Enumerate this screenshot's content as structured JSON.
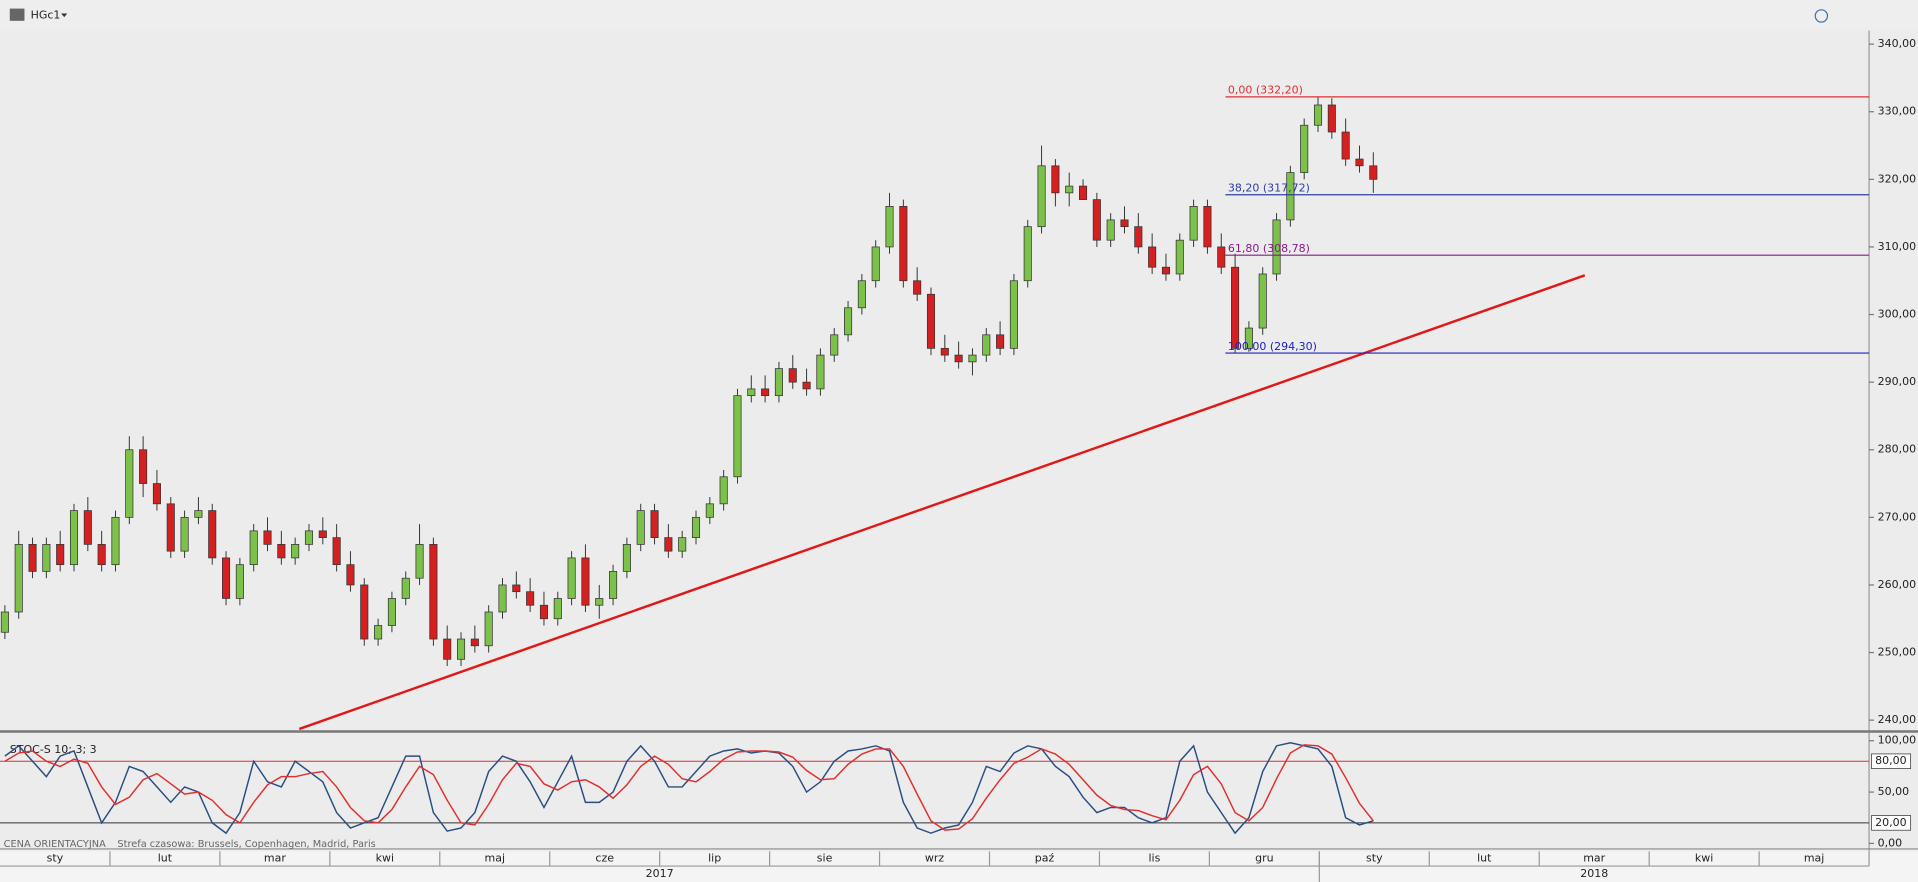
{
  "header": {
    "ticker": "HGc1"
  },
  "chart_data": [
    {
      "type": "candlestick",
      "ylim": [
        238.5,
        342
      ],
      "yticks": [
        {
          "value": 240,
          "label": "240,00"
        },
        {
          "value": 250,
          "label": "250,00"
        },
        {
          "value": 260,
          "label": "260,00"
        },
        {
          "value": 270,
          "label": "270,00"
        },
        {
          "value": 280,
          "label": "280,00"
        },
        {
          "value": 290,
          "label": "290,00"
        },
        {
          "value": 300,
          "label": "300,00"
        },
        {
          "value": 310,
          "label": "310,00"
        },
        {
          "value": 320,
          "label": "320,00"
        },
        {
          "value": 330,
          "label": "330,00"
        },
        {
          "value": 340,
          "label": "340,00"
        }
      ],
      "up_color": "#7cc14a",
      "down_color": "#d42020",
      "open": [
        253,
        256,
        266,
        262,
        266,
        263,
        271,
        266,
        263,
        270,
        280,
        275,
        272,
        265,
        270,
        271,
        264,
        258,
        263,
        268,
        266,
        264,
        266,
        268,
        267,
        263,
        260,
        252,
        254,
        258,
        261,
        266,
        252,
        249,
        252,
        251,
        256,
        260,
        259,
        257,
        255,
        258,
        264,
        257,
        258,
        262,
        266,
        271,
        267,
        265,
        267,
        270,
        272,
        276,
        288,
        289,
        288,
        292,
        290,
        289,
        294,
        297,
        301,
        305,
        310,
        316,
        305,
        303,
        295,
        294,
        293,
        294,
        297,
        295,
        305,
        313,
        322,
        318,
        319,
        317,
        311,
        314,
        313,
        310,
        307,
        306,
        311,
        316,
        310,
        307,
        295,
        298,
        306,
        314,
        321,
        328,
        331,
        327,
        323,
        322
      ],
      "high": [
        257,
        268,
        267,
        267,
        268,
        272,
        273,
        268,
        271,
        282,
        282,
        277,
        273,
        271,
        273,
        272,
        265,
        264,
        269,
        270,
        268,
        267,
        269,
        270,
        269,
        265,
        261,
        255,
        259,
        262,
        269,
        267,
        254,
        253,
        254,
        257,
        261,
        262,
        261,
        259,
        259,
        265,
        266,
        260,
        263,
        267,
        272,
        272,
        269,
        268,
        271,
        273,
        277,
        289,
        291,
        291,
        293,
        294,
        292,
        295,
        298,
        302,
        306,
        311,
        318,
        317,
        307,
        304,
        297,
        296,
        295,
        298,
        299,
        306,
        314,
        325,
        323,
        321,
        320,
        318,
        315,
        316,
        315,
        312,
        309,
        312,
        317,
        317,
        312,
        309,
        299,
        307,
        315,
        322,
        329,
        332.2,
        332,
        329,
        325,
        324
      ],
      "low": [
        252,
        255,
        261,
        261,
        262,
        262,
        265,
        262,
        262,
        269,
        273,
        271,
        264,
        264,
        269,
        263,
        257,
        257,
        262,
        265,
        263,
        263,
        265,
        266,
        262,
        259,
        251,
        251,
        253,
        257,
        260,
        251,
        248,
        248,
        250,
        250,
        255,
        258,
        256,
        254,
        254,
        257,
        256,
        255,
        257,
        261,
        265,
        266,
        264,
        264,
        266,
        269,
        271,
        275,
        287,
        287,
        287,
        289,
        288,
        288,
        293,
        296,
        300,
        304,
        309,
        304,
        302,
        294,
        293,
        292,
        291,
        293,
        294,
        294,
        304,
        312,
        316,
        316,
        317,
        310,
        310,
        312,
        309,
        306,
        305,
        305,
        310,
        309,
        306,
        294.3,
        294.5,
        297,
        305,
        313,
        320,
        327,
        326,
        322,
        321,
        318
      ],
      "close": [
        256,
        266,
        262,
        266,
        263,
        271,
        266,
        263,
        270,
        280,
        275,
        272,
        265,
        270,
        271,
        264,
        258,
        263,
        268,
        266,
        264,
        266,
        268,
        267,
        263,
        260,
        252,
        254,
        258,
        261,
        266,
        252,
        249,
        252,
        251,
        256,
        260,
        259,
        257,
        255,
        258,
        264,
        257,
        258,
        262,
        266,
        271,
        267,
        265,
        267,
        270,
        272,
        276,
        288,
        289,
        288,
        292,
        290,
        289,
        294,
        297,
        301,
        305,
        310,
        316,
        305,
        303,
        295,
        294,
        293,
        294,
        297,
        295,
        305,
        313,
        322,
        318,
        319,
        317,
        311,
        314,
        313,
        310,
        307,
        306,
        311,
        316,
        310,
        307,
        295,
        298,
        306,
        314,
        321,
        328,
        331,
        327,
        323,
        322,
        320
      ],
      "fib_levels": [
        {
          "label": "0,00 (332,20)",
          "value": 332.2,
          "color": "#e03030"
        },
        {
          "label": "38,20 (317,72)",
          "value": 317.72,
          "color": "#3040a0"
        },
        {
          "label": "61,80 (308,78)",
          "value": 308.78,
          "color": "#8a1a8a"
        },
        {
          "label": "100,00 (294,30)",
          "value": 294.3,
          "color": "#2020c0"
        }
      ],
      "trendline": {
        "x": [
          21.3,
          114.3
        ],
        "y": [
          238.7,
          305.8
        ],
        "color": "#e01818"
      }
    },
    {
      "type": "line",
      "title": "STOC-S 10; 3; 3",
      "ylim": [
        -3,
        103
      ],
      "yticks": [
        {
          "value": 0,
          "label": "0,00"
        },
        {
          "value": 50,
          "label": "50,00"
        },
        {
          "value": 100,
          "label": "100,00"
        }
      ],
      "levels": [
        {
          "value": 80,
          "label": "80,00"
        },
        {
          "value": 20,
          "label": "20,00"
        }
      ],
      "series": [
        {
          "color": "#2a4e80",
          "values": [
            85,
            95,
            80,
            65,
            85,
            90,
            55,
            20,
            40,
            75,
            70,
            55,
            40,
            55,
            50,
            20,
            10,
            30,
            80,
            60,
            55,
            80,
            70,
            60,
            30,
            15,
            20,
            25,
            55,
            85,
            85,
            30,
            12,
            15,
            30,
            70,
            85,
            80,
            60,
            35,
            60,
            85,
            40,
            40,
            50,
            80,
            95,
            80,
            55,
            55,
            70,
            85,
            90,
            92,
            88,
            90,
            88,
            75,
            50,
            60,
            80,
            90,
            92,
            95,
            90,
            40,
            15,
            10,
            15,
            18,
            40,
            75,
            70,
            88,
            95,
            92,
            75,
            65,
            45,
            30,
            35,
            35,
            25,
            20,
            25,
            80,
            95,
            50,
            30,
            10,
            25,
            70,
            95,
            98,
            95,
            92,
            75,
            25,
            18,
            22
          ]
        },
        {
          "color": "#e03030",
          "values": [
            80,
            88,
            90,
            80,
            75,
            82,
            78,
            55,
            38,
            45,
            62,
            68,
            58,
            48,
            50,
            42,
            28,
            20,
            40,
            57,
            65,
            65,
            68,
            70,
            55,
            35,
            22,
            20,
            33,
            55,
            75,
            67,
            42,
            20,
            18,
            38,
            62,
            78,
            75,
            58,
            52,
            60,
            62,
            55,
            44,
            57,
            75,
            85,
            77,
            63,
            60,
            70,
            82,
            89,
            90,
            90,
            89,
            84,
            71,
            62,
            63,
            77,
            87,
            92,
            92,
            75,
            48,
            22,
            13,
            14,
            24,
            44,
            62,
            78,
            84,
            92,
            87,
            77,
            62,
            47,
            37,
            33,
            32,
            27,
            23,
            42,
            67,
            75,
            58,
            30,
            22,
            35,
            63,
            88,
            96,
            95,
            87,
            64,
            39,
            22
          ]
        }
      ]
    }
  ],
  "x_axis": {
    "months": [
      "sty",
      "lut",
      "mar",
      "kwi",
      "maj",
      "cze",
      "lip",
      "sie",
      "wrz",
      "paź",
      "lis",
      "gru",
      "sty",
      "lut",
      "mar",
      "kwi",
      "maj"
    ],
    "years": [
      "2017",
      "2018"
    ]
  },
  "footer": {
    "price_note": "CENA ORIENTACYJNA",
    "timezone": "Strefa czasowa: Brussels, Copenhagen, Madrid, Paris"
  }
}
